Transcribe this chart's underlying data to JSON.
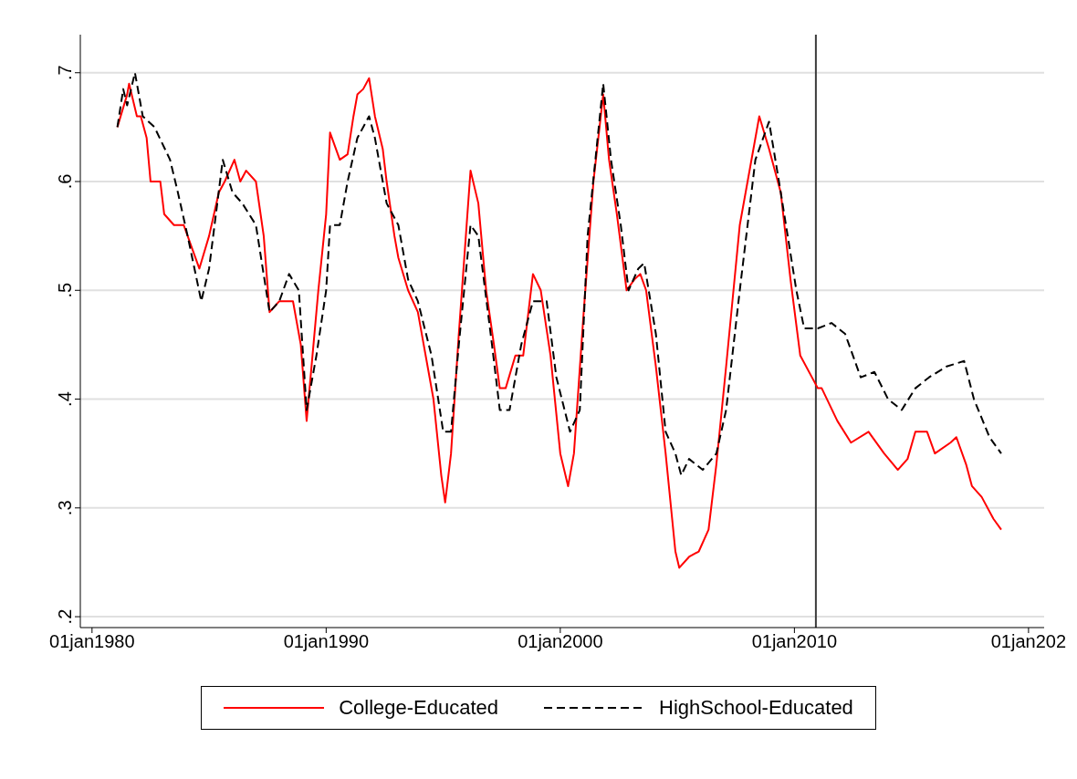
{
  "chart_data": {
    "type": "line",
    "xlim": [
      "1979-07",
      "2020-09"
    ],
    "xticks": [
      {
        "value": "1980-01-01",
        "label": "01jan1980"
      },
      {
        "value": "1990-01-01",
        "label": "01jan1990"
      },
      {
        "value": "2000-01-01",
        "label": "01jan2000"
      },
      {
        "value": "2010-01-01",
        "label": "01jan2010"
      },
      {
        "value": "2020-01-01",
        "label": "01jan202"
      }
    ],
    "ylim": [
      0.19,
      0.735
    ],
    "yticks": [
      {
        "value": 0.2,
        "label": ".2"
      },
      {
        "value": 0.3,
        "label": ".3"
      },
      {
        "value": 0.4,
        "label": ".4"
      },
      {
        "value": 0.5,
        "label": ".5"
      },
      {
        "value": 0.6,
        "label": ".6"
      },
      {
        "value": 0.7,
        "label": ".7"
      }
    ],
    "grid": "y",
    "legend": "bottom",
    "marker": "none",
    "ref_lines": [
      {
        "axis": "x",
        "value": "2010-12",
        "color": "#3c3c3c",
        "line_style": "solid"
      }
    ],
    "series": [
      {
        "name": "College-Educated",
        "color": "#ff0000",
        "line_style": "solid",
        "x": [
          "1981-02",
          "1981-07",
          "1981-08",
          "1981-12",
          "1982-02",
          "1982-05",
          "1982-07",
          "1982-12",
          "1983-02",
          "1983-07",
          "1983-12",
          "1984-04",
          "1984-08",
          "1985-01",
          "1985-06",
          "1985-09",
          "1986-02",
          "1986-05",
          "1986-08",
          "1987-01",
          "1987-05",
          "1987-08",
          "1988-01",
          "1988-08",
          "1988-12",
          "1989-03",
          "1989-06",
          "1989-09",
          "1990-01",
          "1990-03",
          "1990-08",
          "1990-12",
          "1991-03",
          "1991-05",
          "1991-08",
          "1991-11",
          "1992-02",
          "1992-06",
          "1992-08",
          "1992-12",
          "1993-02",
          "1993-07",
          "1993-12",
          "1994-05",
          "1994-08",
          "1994-12",
          "1995-02",
          "1995-05",
          "1995-09",
          "1996-01",
          "1996-03",
          "1996-07",
          "1996-11",
          "1997-03",
          "1997-06",
          "1997-09",
          "1998-02",
          "1998-06",
          "1998-11",
          "1999-03",
          "1999-08",
          "2000-01",
          "2000-05",
          "2000-08",
          "2001-01",
          "2001-06",
          "2001-11",
          "2002-02",
          "2002-06",
          "2002-11",
          "2003-03",
          "2003-06",
          "2003-09",
          "2004-02",
          "2004-07",
          "2004-12",
          "2005-02",
          "2005-07",
          "2005-12",
          "2006-05",
          "2006-09",
          "2007-02",
          "2007-09",
          "2008-07",
          "2008-12",
          "2009-06",
          "2009-11",
          "2010-04",
          "2011-01",
          "2011-03",
          "2011-11",
          "2012-06",
          "2013-03",
          "2013-11",
          "2014-06",
          "2014-11",
          "2015-03",
          "2015-09",
          "2016-01",
          "2016-09",
          "2016-12",
          "2017-05",
          "2017-08",
          "2018-01",
          "2018-07",
          "2018-11"
        ],
        "values": [
          0.65,
          0.68,
          0.69,
          0.66,
          0.66,
          0.64,
          0.6,
          0.6,
          0.57,
          0.56,
          0.56,
          0.54,
          0.52,
          0.55,
          0.59,
          0.6,
          0.62,
          0.6,
          0.61,
          0.6,
          0.55,
          0.48,
          0.49,
          0.49,
          0.45,
          0.38,
          0.44,
          0.5,
          0.57,
          0.645,
          0.62,
          0.625,
          0.66,
          0.68,
          0.685,
          0.695,
          0.66,
          0.63,
          0.6,
          0.55,
          0.53,
          0.5,
          0.48,
          0.43,
          0.4,
          0.33,
          0.305,
          0.35,
          0.46,
          0.56,
          0.61,
          0.58,
          0.5,
          0.45,
          0.41,
          0.41,
          0.44,
          0.44,
          0.515,
          0.5,
          0.44,
          0.35,
          0.32,
          0.35,
          0.48,
          0.6,
          0.68,
          0.62,
          0.57,
          0.5,
          0.51,
          0.515,
          0.5,
          0.43,
          0.35,
          0.26,
          0.245,
          0.255,
          0.26,
          0.28,
          0.34,
          0.43,
          0.56,
          0.66,
          0.63,
          0.59,
          0.51,
          0.44,
          0.41,
          0.41,
          0.38,
          0.36,
          0.37,
          0.35,
          0.335,
          0.345,
          0.37,
          0.37,
          0.35,
          0.36,
          0.365,
          0.34,
          0.32,
          0.31,
          0.29,
          0.28
        ]
      },
      {
        "name": "HighSchool-Educated",
        "color": "#000000",
        "line_style": "dashed",
        "x": [
          "1981-02",
          "1981-05",
          "1981-07",
          "1981-11",
          "1982-03",
          "1982-09",
          "1983-05",
          "1983-09",
          "1984-02",
          "1984-09",
          "1985-01",
          "1985-08",
          "1986-01",
          "1986-06",
          "1987-01",
          "1987-08",
          "1988-01",
          "1988-06",
          "1988-11",
          "1989-03",
          "1989-08",
          "1990-01",
          "1990-03",
          "1990-08",
          "1990-12",
          "1991-05",
          "1991-11",
          "1992-02",
          "1992-08",
          "1993-02",
          "1993-07",
          "1993-12",
          "1994-07",
          "1995-01",
          "1995-05",
          "1995-09",
          "1996-03",
          "1996-07",
          "1997-02",
          "1997-06",
          "1997-11",
          "1998-05",
          "1998-11",
          "1999-06",
          "1999-11",
          "2000-06",
          "2000-11",
          "2001-03",
          "2001-11",
          "2002-03",
          "2002-08",
          "2002-12",
          "2003-05",
          "2003-08",
          "2004-02",
          "2004-07",
          "2004-12",
          "2005-03",
          "2005-07",
          "2006-02",
          "2006-09",
          "2007-02",
          "2007-09",
          "2008-05",
          "2008-12",
          "2009-06",
          "2010-02",
          "2010-06",
          "2011-01",
          "2011-08",
          "2012-03",
          "2012-11",
          "2013-06",
          "2014-01",
          "2014-08",
          "2015-03",
          "2015-10",
          "2016-07",
          "2017-04",
          "2017-09",
          "2018-05",
          "2018-11"
        ],
        "values": [
          0.65,
          0.685,
          0.67,
          0.7,
          0.66,
          0.65,
          0.62,
          0.59,
          0.55,
          0.49,
          0.52,
          0.62,
          0.59,
          0.58,
          0.56,
          0.48,
          0.49,
          0.515,
          0.5,
          0.39,
          0.44,
          0.5,
          0.56,
          0.56,
          0.6,
          0.64,
          0.66,
          0.64,
          0.58,
          0.56,
          0.51,
          0.49,
          0.44,
          0.37,
          0.37,
          0.45,
          0.56,
          0.55,
          0.45,
          0.39,
          0.39,
          0.45,
          0.49,
          0.49,
          0.42,
          0.37,
          0.39,
          0.55,
          0.69,
          0.62,
          0.56,
          0.5,
          0.52,
          0.525,
          0.46,
          0.37,
          0.35,
          0.33,
          0.345,
          0.335,
          0.35,
          0.39,
          0.5,
          0.62,
          0.655,
          0.59,
          0.5,
          0.465,
          0.465,
          0.47,
          0.46,
          0.42,
          0.425,
          0.4,
          0.39,
          0.41,
          0.42,
          0.43,
          0.435,
          0.4,
          0.365,
          0.35
        ]
      }
    ]
  }
}
